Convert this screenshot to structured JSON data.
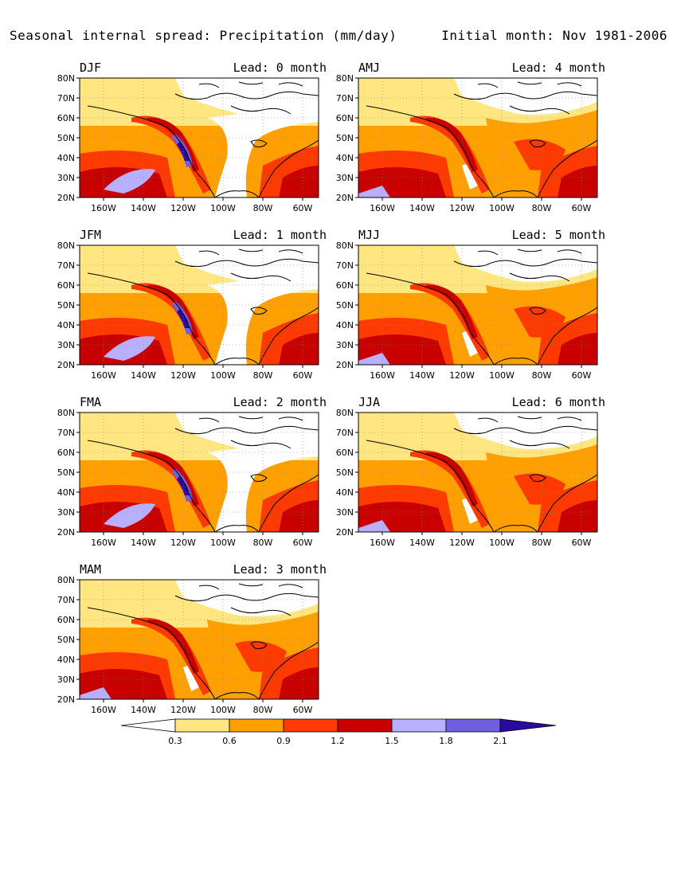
{
  "header": {
    "title": "Seasonal internal spread: Precipitation (mm/day)",
    "initial": "Initial month: Nov 1981-2006"
  },
  "axes": {
    "lat_ticks": [
      "80N",
      "70N",
      "60N",
      "50N",
      "40N",
      "30N",
      "20N"
    ],
    "lon_ticks": [
      "160W",
      "140W",
      "120W",
      "100W",
      "80W",
      "60W"
    ]
  },
  "panels": [
    {
      "season": "DJF",
      "lead": "Lead: 0 month",
      "west_coast_max": "high"
    },
    {
      "season": "AMJ",
      "lead": "Lead: 4 month",
      "west_coast_max": "moderate"
    },
    {
      "season": "JFM",
      "lead": "Lead: 1 month",
      "west_coast_max": "high"
    },
    {
      "season": "MJJ",
      "lead": "Lead: 5 month",
      "west_coast_max": "moderate"
    },
    {
      "season": "FMA",
      "lead": "Lead: 2 month",
      "west_coast_max": "high"
    },
    {
      "season": "JJA",
      "lead": "Lead: 6 month",
      "west_coast_max": "moderate"
    },
    {
      "season": "MAM",
      "lead": "Lead: 3 month",
      "west_coast_max": "moderate"
    }
  ],
  "colorbar": {
    "labels": [
      "0.3",
      "0.6",
      "0.9",
      "1.2",
      "1.5",
      "1.8",
      "2.1"
    ],
    "colors": [
      "#ffffff",
      "#ffe680",
      "#ffa000",
      "#ff3a00",
      "#c80000",
      "#b8b0ff",
      "#7060e0",
      "#2a0aa0"
    ]
  }
}
